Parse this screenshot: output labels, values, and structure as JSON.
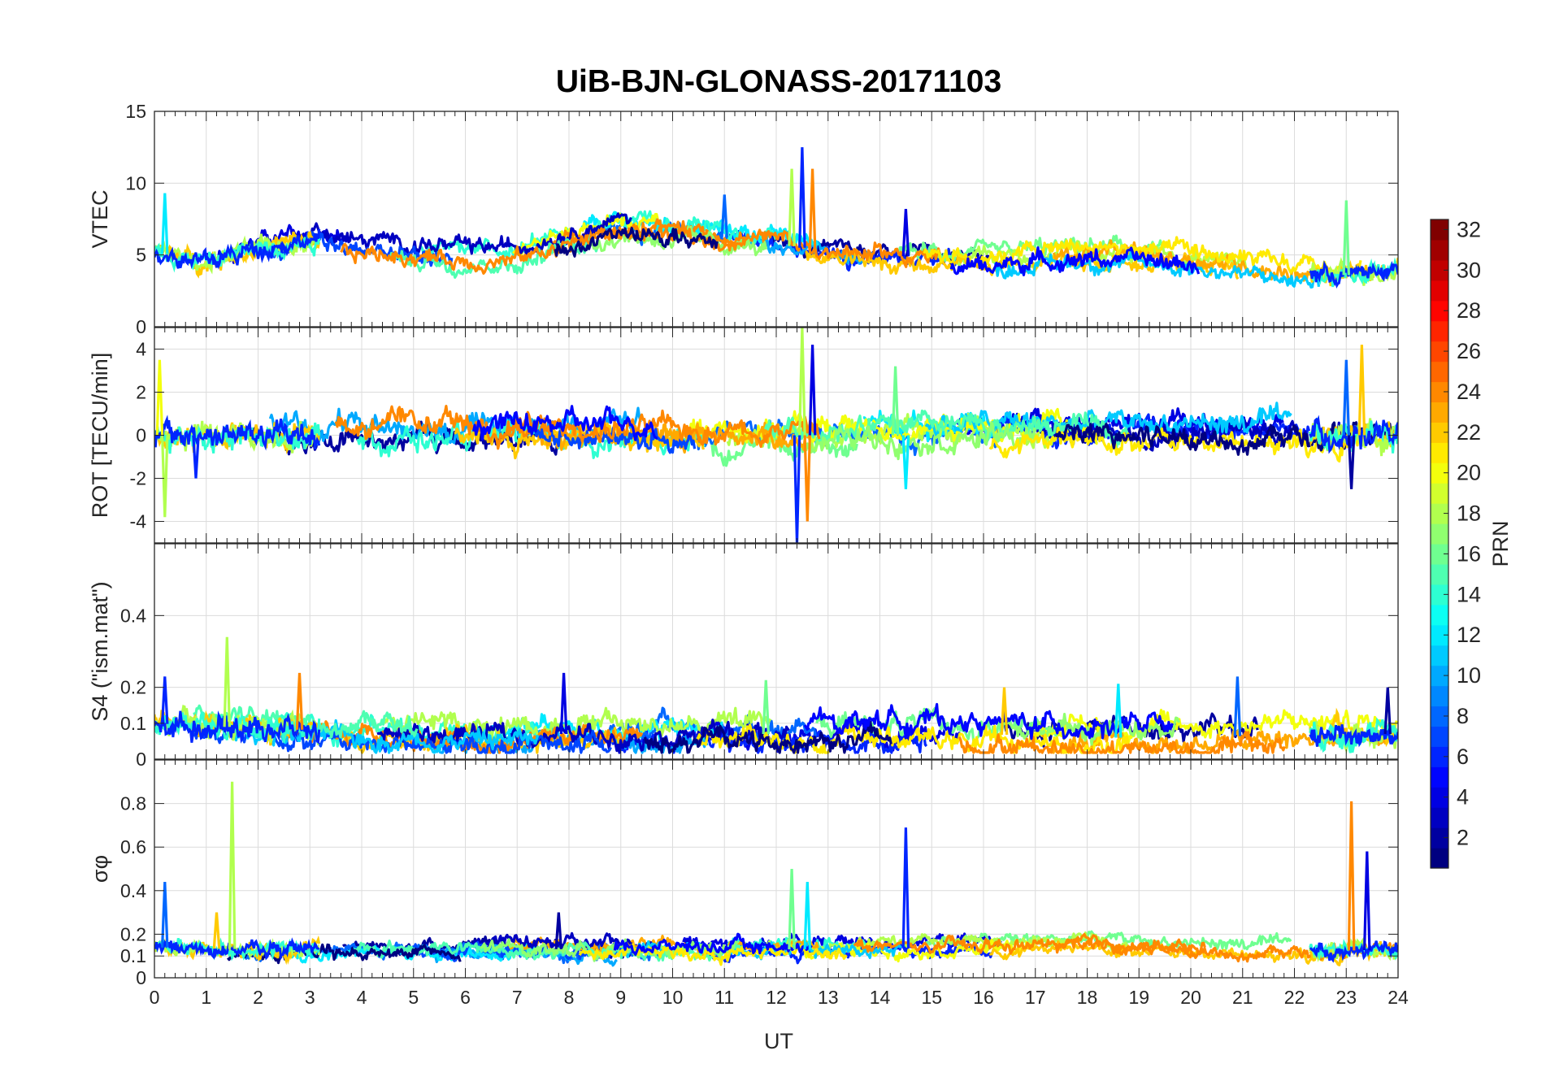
{
  "chart_data": {
    "type": "line",
    "title": "UiB-BJN-GLONASS-20171103",
    "xlabel": "UT",
    "xlim": [
      0,
      24
    ],
    "xticks": [
      "0",
      "1",
      "2",
      "3",
      "4",
      "5",
      "6",
      "7",
      "8",
      "9",
      "10",
      "11",
      "12",
      "13",
      "14",
      "15",
      "16",
      "17",
      "18",
      "19",
      "20",
      "21",
      "22",
      "23",
      "24"
    ],
    "grid": "on",
    "series_note": "Multiple satellite tracks colored by PRN (jet colormap)",
    "colorbar": {
      "label": "PRN",
      "range": [
        1,
        32
      ],
      "ticks": [
        "2",
        "4",
        "6",
        "8",
        "10",
        "12",
        "14",
        "16",
        "18",
        "20",
        "22",
        "24",
        "26",
        "28",
        "30",
        "32"
      ],
      "colormap": "jet"
    },
    "panels": [
      {
        "id": "vtec",
        "ylabel": "VTEC",
        "ylim": [
          0,
          15
        ],
        "yticks": [
          "0",
          "5",
          "10",
          "15"
        ],
        "baseline": [
          [
            0,
            5.2
          ],
          [
            1,
            4.5
          ],
          [
            2,
            5.5
          ],
          [
            3,
            6.0
          ],
          [
            4,
            5.3
          ],
          [
            5,
            5.2
          ],
          [
            6,
            4.8
          ],
          [
            7,
            4.9
          ],
          [
            8,
            6.0
          ],
          [
            9,
            6.8
          ],
          [
            10,
            6.5
          ],
          [
            11,
            6.2
          ],
          [
            12,
            5.8
          ],
          [
            13,
            5.2
          ],
          [
            14,
            5.0
          ],
          [
            15,
            4.8
          ],
          [
            16,
            4.6
          ],
          [
            17,
            5.0
          ],
          [
            18,
            5.2
          ],
          [
            19,
            5.0
          ],
          [
            20,
            4.8
          ],
          [
            21,
            4.3
          ],
          [
            22,
            3.8
          ],
          [
            23,
            3.6
          ],
          [
            24,
            4.0
          ]
        ],
        "noise": 0.6,
        "spikes": [
          [
            12.3,
            11
          ],
          [
            12.5,
            12.5
          ],
          [
            12.7,
            11
          ],
          [
            14.5,
            8.2
          ],
          [
            23.0,
            8.8
          ],
          [
            0.2,
            9.3
          ],
          [
            11.0,
            9.2
          ]
        ]
      },
      {
        "id": "rot",
        "ylabel": "ROT [TECU/min]",
        "ylim": [
          -5,
          5
        ],
        "yticks": [
          "-4",
          "-2",
          "0",
          "2",
          "4"
        ],
        "baseline": [
          [
            0,
            0
          ],
          [
            24,
            0
          ]
        ],
        "noise": 0.55,
        "spikes": [
          [
            12.5,
            5.0
          ],
          [
            12.4,
            -5.0
          ],
          [
            12.6,
            -4.0
          ],
          [
            12.7,
            4.2
          ],
          [
            14.3,
            3.2
          ],
          [
            14.5,
            -2.5
          ],
          [
            23.0,
            3.5
          ],
          [
            23.3,
            4.2
          ],
          [
            23.1,
            -2.5
          ],
          [
            0.1,
            3.5
          ],
          [
            0.2,
            -3.8
          ],
          [
            0.8,
            -2.0
          ]
        ]
      },
      {
        "id": "s4",
        "ylabel": "S4 (\"ism.mat\")",
        "ylim": [
          0,
          0.6
        ],
        "yticks": [
          "0",
          "0.1",
          "0.2",
          "0.4"
        ],
        "baseline": [
          [
            0,
            0.1
          ],
          [
            1,
            0.09
          ],
          [
            2,
            0.09
          ],
          [
            3,
            0.08
          ],
          [
            5,
            0.07
          ],
          [
            8,
            0.07
          ],
          [
            10,
            0.07
          ],
          [
            12,
            0.07
          ],
          [
            14,
            0.08
          ],
          [
            16,
            0.07
          ],
          [
            18,
            0.06
          ],
          [
            20,
            0.06
          ],
          [
            22,
            0.07
          ],
          [
            24,
            0.07
          ]
        ],
        "noise": 0.03,
        "spikes": [
          [
            1.4,
            0.34
          ],
          [
            0.2,
            0.23
          ],
          [
            2.8,
            0.24
          ],
          [
            7.9,
            0.24
          ],
          [
            11.8,
            0.22
          ],
          [
            18.6,
            0.21
          ],
          [
            20.9,
            0.23
          ],
          [
            16.4,
            0.2
          ],
          [
            23.8,
            0.2
          ]
        ]
      },
      {
        "id": "sigma",
        "ylabel": "σφ",
        "ylim": [
          0,
          1
        ],
        "yticks": [
          "0",
          "0.1",
          "0.2",
          "0.4",
          "0.6",
          "0.8"
        ],
        "baseline": [
          [
            0,
            0.14
          ],
          [
            2,
            0.13
          ],
          [
            4,
            0.14
          ],
          [
            5,
            0.15
          ],
          [
            8,
            0.13
          ],
          [
            12,
            0.13
          ],
          [
            16,
            0.14
          ],
          [
            18,
            0.15
          ],
          [
            20,
            0.13
          ],
          [
            22,
            0.12
          ],
          [
            24,
            0.13
          ]
        ],
        "noise": 0.03,
        "spikes": [
          [
            1.5,
            0.9
          ],
          [
            14.5,
            0.69
          ],
          [
            23.1,
            0.81
          ],
          [
            23.4,
            0.58
          ],
          [
            12.3,
            0.5
          ],
          [
            12.6,
            0.44
          ],
          [
            0.2,
            0.44
          ],
          [
            1.2,
            0.3
          ],
          [
            7.8,
            0.3
          ]
        ]
      }
    ]
  }
}
